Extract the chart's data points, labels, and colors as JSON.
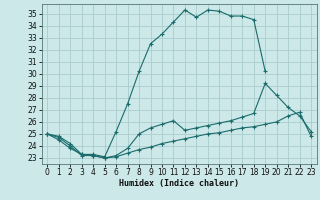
{
  "bg_color": "#cce8e8",
  "grid_color": "#aacccc",
  "line_color": "#1a6b6b",
  "xlabel": "Humidex (Indice chaleur)",
  "xlim": [
    -0.5,
    23.5
  ],
  "ylim": [
    22.5,
    35.8
  ],
  "xticks": [
    0,
    1,
    2,
    3,
    4,
    5,
    6,
    7,
    8,
    9,
    10,
    11,
    12,
    13,
    14,
    15,
    16,
    17,
    18,
    19,
    20,
    21,
    22,
    23
  ],
  "yticks": [
    23,
    24,
    25,
    26,
    27,
    28,
    29,
    30,
    31,
    32,
    33,
    34,
    35
  ],
  "line1_x": [
    0,
    1,
    2,
    3,
    4,
    5,
    6,
    7,
    8,
    9,
    10,
    11,
    12,
    13,
    14,
    15,
    16,
    17,
    18,
    19
  ],
  "line1_y": [
    25.0,
    24.8,
    24.2,
    23.3,
    23.3,
    23.1,
    25.2,
    27.5,
    30.2,
    32.5,
    33.3,
    34.3,
    35.3,
    34.7,
    35.3,
    35.2,
    34.8,
    34.8,
    34.5,
    30.2
  ],
  "line2_x": [
    0,
    1,
    2,
    3,
    4,
    5,
    6,
    7,
    8,
    9,
    10,
    11,
    12,
    13,
    14,
    15,
    16,
    17,
    18,
    19,
    20,
    21,
    22,
    23
  ],
  "line2_y": [
    25.0,
    24.5,
    23.8,
    23.3,
    23.2,
    23.0,
    23.2,
    23.8,
    25.0,
    25.5,
    25.8,
    26.1,
    25.3,
    25.5,
    25.7,
    25.9,
    26.1,
    26.4,
    26.7,
    29.2,
    28.2,
    27.2,
    26.5,
    25.2
  ],
  "line3_x": [
    0,
    1,
    2,
    3,
    4,
    5,
    6,
    7,
    8,
    9,
    10,
    11,
    12,
    13,
    14,
    15,
    16,
    17,
    18,
    19,
    20,
    21,
    22,
    23
  ],
  "line3_y": [
    25.0,
    24.7,
    24.0,
    23.2,
    23.2,
    23.0,
    23.1,
    23.4,
    23.7,
    23.9,
    24.2,
    24.4,
    24.6,
    24.8,
    25.0,
    25.1,
    25.3,
    25.5,
    25.6,
    25.8,
    26.0,
    26.5,
    26.8,
    24.8
  ]
}
